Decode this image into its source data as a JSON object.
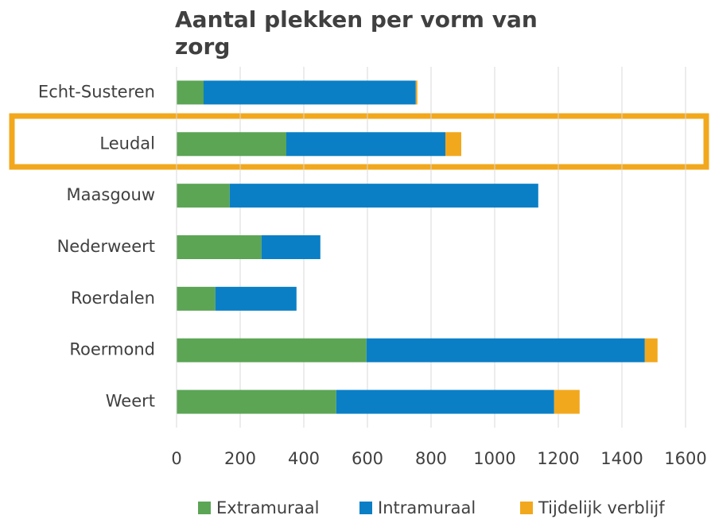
{
  "chart_data": {
    "type": "stacked_barh",
    "title": "Aantal plekken per vorm van zorg",
    "categories": [
      "Echt-Susteren",
      "Leudal",
      "Maasgouw",
      "Nederweert",
      "Roerdalen",
      "Roermond",
      "Weert"
    ],
    "series": [
      {
        "name": "Extramuraal",
        "color": "#5ba555",
        "values": [
          85,
          345,
          167,
          267,
          122,
          597,
          502
        ]
      },
      {
        "name": "Intramuraal",
        "color": "#0a7fc6",
        "values": [
          667,
          500,
          970,
          185,
          255,
          875,
          685
        ]
      },
      {
        "name": "Tijdelijk verblijf",
        "color": "#f2a81d",
        "values": [
          5,
          50,
          0,
          0,
          0,
          40,
          80
        ]
      }
    ],
    "xlim": [
      0,
      1600
    ],
    "xticks": [
      0,
      200,
      400,
      600,
      800,
      1000,
      1200,
      1400,
      1600
    ],
    "grid": true,
    "legend": "bottom"
  }
}
